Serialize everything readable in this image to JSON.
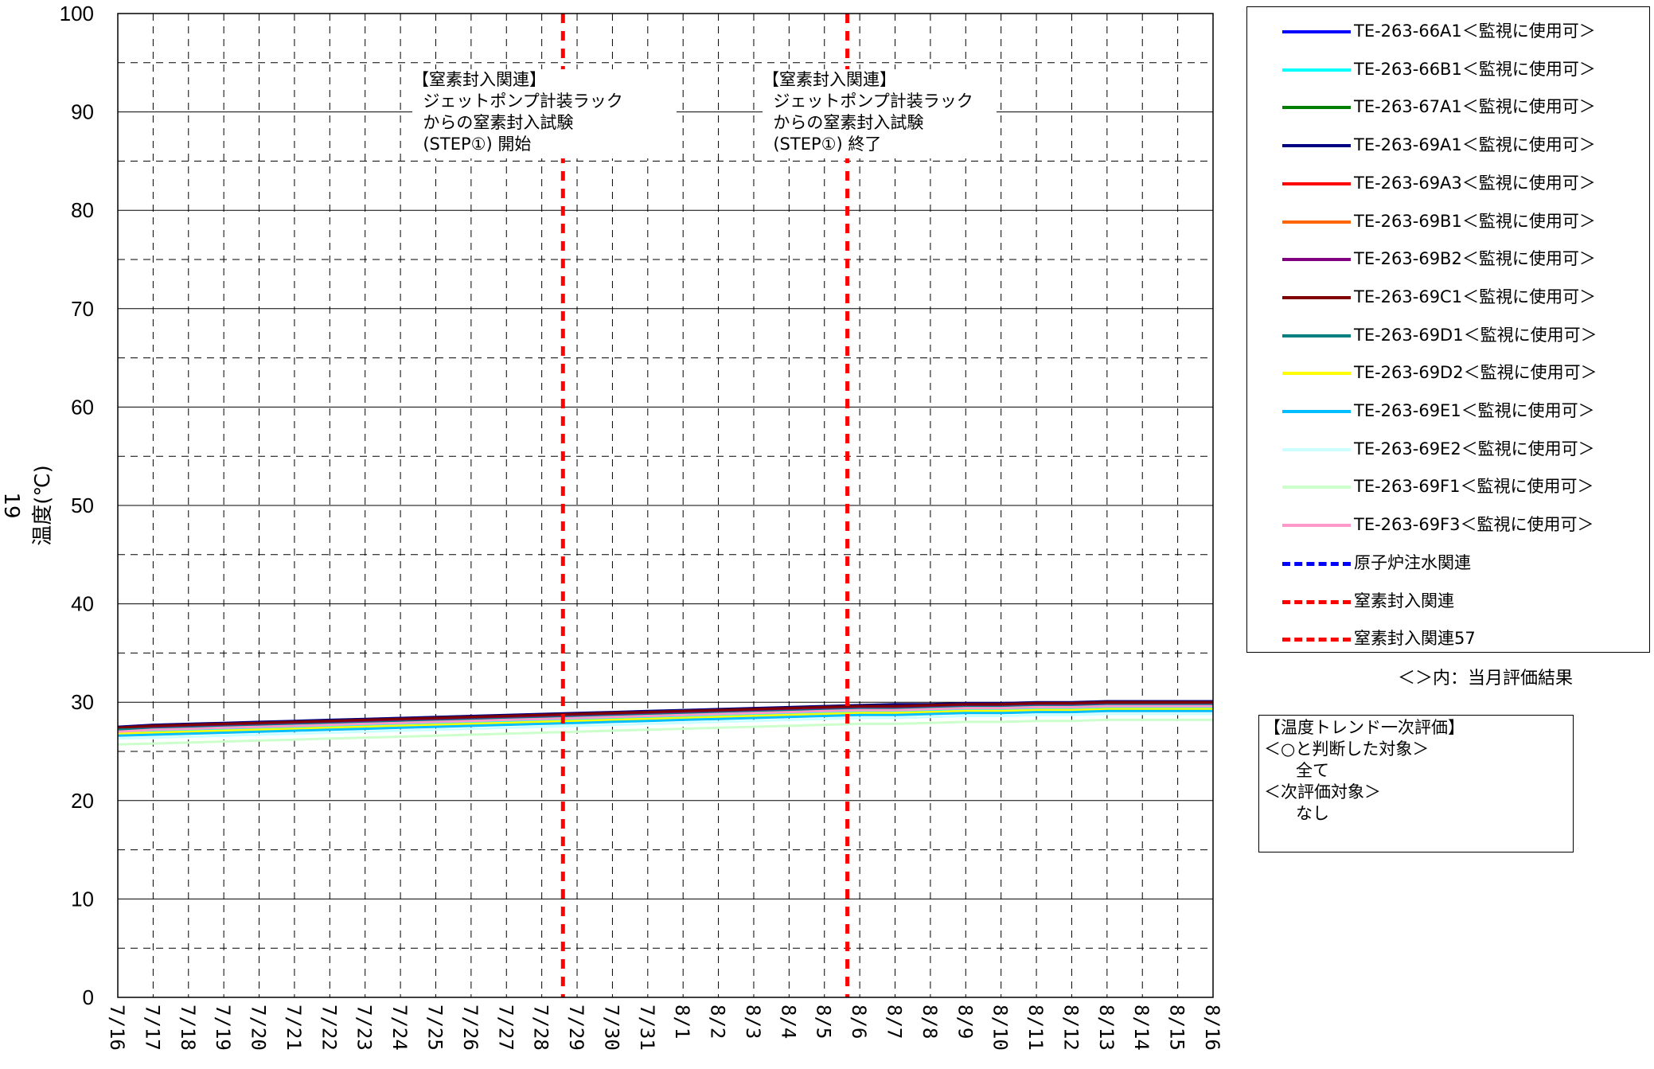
{
  "chart_data": {
    "type": "line",
    "ylabel": "温度(℃)",
    "ylabel_marker": "19",
    "ylim": [
      0,
      100
    ],
    "yticks": [
      0,
      10,
      20,
      30,
      40,
      50,
      60,
      70,
      80,
      90,
      100
    ],
    "grid": "on",
    "x": [
      "7/16",
      "7/17",
      "7/18",
      "7/19",
      "7/20",
      "7/21",
      "7/22",
      "7/23",
      "7/24",
      "7/25",
      "7/26",
      "7/27",
      "7/28",
      "7/29",
      "7/30",
      "7/31",
      "8/1",
      "8/2",
      "8/3",
      "8/4",
      "8/5",
      "8/6",
      "8/7",
      "8/8",
      "8/9",
      "8/10",
      "8/11",
      "8/12",
      "8/13",
      "8/14",
      "8/15",
      "8/16"
    ],
    "series": [
      {
        "name": "TE-263-66A1＜監視に使用可＞",
        "color": "#0000ff",
        "dash": "solid",
        "values": [
          27.4,
          27.6,
          27.7,
          27.8,
          27.9,
          28.0,
          28.1,
          28.2,
          28.3,
          28.4,
          28.5,
          28.6,
          28.7,
          28.8,
          28.9,
          29.0,
          29.1,
          29.2,
          29.3,
          29.4,
          29.5,
          29.6,
          29.7,
          29.7,
          29.8,
          29.8,
          29.9,
          29.9,
          30.0,
          30.0,
          30.0,
          30.0
        ]
      },
      {
        "name": "TE-263-66B1＜監視に使用可＞",
        "color": "#00ffff",
        "dash": "solid",
        "values": [
          27.0,
          27.1,
          27.2,
          27.3,
          27.4,
          27.5,
          27.6,
          27.7,
          27.8,
          27.9,
          28.0,
          28.1,
          28.2,
          28.3,
          28.4,
          28.5,
          28.6,
          28.7,
          28.8,
          28.9,
          29.0,
          29.1,
          29.1,
          29.2,
          29.3,
          29.3,
          29.4,
          29.4,
          29.5,
          29.5,
          29.5,
          29.5
        ]
      },
      {
        "name": "TE-263-67A1＜監視に使用可＞",
        "color": "#008000",
        "dash": "solid",
        "values": [
          27.3,
          27.5,
          27.6,
          27.7,
          27.8,
          27.9,
          28.0,
          28.1,
          28.2,
          28.3,
          28.4,
          28.5,
          28.6,
          28.7,
          28.8,
          28.9,
          29.0,
          29.1,
          29.2,
          29.3,
          29.4,
          29.5,
          29.5,
          29.6,
          29.7,
          29.7,
          29.8,
          29.8,
          29.9,
          29.9,
          29.9,
          29.9
        ]
      },
      {
        "name": "TE-263-69A1＜監視に使用可＞",
        "color": "#000080",
        "dash": "solid",
        "values": [
          27.5,
          27.7,
          27.8,
          27.9,
          28.0,
          28.1,
          28.2,
          28.3,
          28.4,
          28.5,
          28.6,
          28.7,
          28.8,
          28.9,
          29.0,
          29.1,
          29.2,
          29.3,
          29.4,
          29.5,
          29.6,
          29.7,
          29.8,
          29.8,
          29.9,
          29.9,
          30.0,
          30.0,
          30.1,
          30.1,
          30.1,
          30.1
        ]
      },
      {
        "name": "TE-263-69A3＜監視に使用可＞",
        "color": "#ff0000",
        "dash": "solid",
        "values": [
          27.2,
          27.4,
          27.5,
          27.6,
          27.7,
          27.8,
          27.9,
          28.0,
          28.1,
          28.2,
          28.3,
          28.4,
          28.5,
          28.6,
          28.7,
          28.8,
          28.9,
          29.0,
          29.1,
          29.2,
          29.3,
          29.4,
          29.4,
          29.5,
          29.6,
          29.6,
          29.7,
          29.7,
          29.8,
          29.8,
          29.8,
          29.8
        ]
      },
      {
        "name": "TE-263-69B1＜監視に使用可＞",
        "color": "#ff6600",
        "dash": "solid",
        "values": [
          27.3,
          27.4,
          27.5,
          27.6,
          27.7,
          27.8,
          27.9,
          28.0,
          28.1,
          28.2,
          28.3,
          28.4,
          28.5,
          28.6,
          28.7,
          28.8,
          28.9,
          29.0,
          29.1,
          29.2,
          29.3,
          29.4,
          29.4,
          29.5,
          29.6,
          29.6,
          29.7,
          29.7,
          29.8,
          29.8,
          29.8,
          29.8
        ]
      },
      {
        "name": "TE-263-69B2＜監視に使用可＞",
        "color": "#800080",
        "dash": "solid",
        "values": [
          27.4,
          27.5,
          27.6,
          27.7,
          27.8,
          27.9,
          28.0,
          28.1,
          28.2,
          28.3,
          28.4,
          28.5,
          28.6,
          28.7,
          28.8,
          28.9,
          29.0,
          29.1,
          29.2,
          29.3,
          29.4,
          29.5,
          29.5,
          29.6,
          29.7,
          29.7,
          29.8,
          29.8,
          29.9,
          29.9,
          29.9,
          29.9
        ]
      },
      {
        "name": "TE-263-69C1＜監視に使用可＞",
        "color": "#800000",
        "dash": "solid",
        "values": [
          27.4,
          27.6,
          27.7,
          27.8,
          27.9,
          28.0,
          28.1,
          28.2,
          28.3,
          28.4,
          28.5,
          28.6,
          28.7,
          28.8,
          28.9,
          29.0,
          29.1,
          29.2,
          29.3,
          29.4,
          29.5,
          29.6,
          29.6,
          29.7,
          29.8,
          29.8,
          29.9,
          29.9,
          30.0,
          30.0,
          30.0,
          30.0
        ]
      },
      {
        "name": "TE-263-69D1＜監視に使用可＞",
        "color": "#008080",
        "dash": "solid",
        "values": [
          27.2,
          27.3,
          27.4,
          27.5,
          27.6,
          27.7,
          27.8,
          27.9,
          28.0,
          28.1,
          28.2,
          28.3,
          28.4,
          28.5,
          28.6,
          28.7,
          28.8,
          28.9,
          29.0,
          29.1,
          29.2,
          29.3,
          29.3,
          29.4,
          29.5,
          29.5,
          29.6,
          29.6,
          29.7,
          29.7,
          29.7,
          29.7
        ]
      },
      {
        "name": "TE-263-69D2＜監視に使用可＞",
        "color": "#ffff00",
        "dash": "solid",
        "values": [
          26.8,
          26.9,
          27.0,
          27.1,
          27.2,
          27.3,
          27.4,
          27.5,
          27.6,
          27.7,
          27.8,
          27.9,
          28.0,
          28.1,
          28.2,
          28.3,
          28.4,
          28.5,
          28.6,
          28.7,
          28.8,
          28.9,
          28.9,
          29.0,
          29.1,
          29.1,
          29.2,
          29.2,
          29.3,
          29.3,
          29.3,
          29.3
        ]
      },
      {
        "name": "TE-263-69E1＜監視に使用可＞",
        "color": "#00bfff",
        "dash": "solid",
        "values": [
          26.6,
          26.7,
          26.8,
          26.9,
          27.0,
          27.1,
          27.2,
          27.3,
          27.4,
          27.5,
          27.6,
          27.7,
          27.8,
          27.9,
          28.0,
          28.1,
          28.2,
          28.3,
          28.4,
          28.5,
          28.6,
          28.7,
          28.7,
          28.8,
          28.9,
          28.9,
          29.0,
          29.0,
          29.1,
          29.1,
          29.1,
          29.1
        ]
      },
      {
        "name": "TE-263-69E2＜監視に使用可＞",
        "color": "#ccffff",
        "dash": "solid",
        "values": [
          26.3,
          26.4,
          26.5,
          26.6,
          26.7,
          26.8,
          26.9,
          27.0,
          27.1,
          27.2,
          27.3,
          27.4,
          27.5,
          27.6,
          27.7,
          27.8,
          27.9,
          28.0,
          28.1,
          28.2,
          28.3,
          28.4,
          28.4,
          28.5,
          28.6,
          28.6,
          28.7,
          28.7,
          28.8,
          28.8,
          28.8,
          28.8
        ]
      },
      {
        "name": "TE-263-69F1＜監視に使用可＞",
        "color": "#ccffcc",
        "dash": "solid",
        "values": [
          25.7,
          25.8,
          25.9,
          26.0,
          26.1,
          26.2,
          26.3,
          26.4,
          26.5,
          26.6,
          26.7,
          26.8,
          26.9,
          27.0,
          27.1,
          27.2,
          27.3,
          27.4,
          27.5,
          27.6,
          27.7,
          27.8,
          27.8,
          27.9,
          28.0,
          28.0,
          28.1,
          28.1,
          28.2,
          28.2,
          28.2,
          28.2
        ]
      },
      {
        "name": "TE-263-69F3＜監視に使用可＞",
        "color": "#ff99cc",
        "dash": "solid",
        "values": [
          27.0,
          27.2,
          27.3,
          27.4,
          27.5,
          27.6,
          27.7,
          27.8,
          27.9,
          28.0,
          28.1,
          28.2,
          28.3,
          28.4,
          28.5,
          28.6,
          28.7,
          28.8,
          28.9,
          29.0,
          29.1,
          29.2,
          29.2,
          29.3,
          29.4,
          29.4,
          29.5,
          29.5,
          29.6,
          29.6,
          29.6,
          29.6
        ]
      }
    ],
    "event_lines": [
      {
        "legend": "原子炉注水関連",
        "color": "#0000ff",
        "x": null
      },
      {
        "legend": "窒素封入関連",
        "color": "#ff0000",
        "x": "7/28 to 7/29",
        "xpos": 12.6
      },
      {
        "legend": "窒素封入関連57",
        "color": "#ff0000",
        "x": "8/5 to 8/6",
        "xpos": 20.65
      }
    ],
    "annotations": [
      {
        "text": "【窒素封入関連】\n  ジェットポンプ計装ラック\n  からの窒素封入試験\n  (STEP①) 開始"
      },
      {
        "text": "【窒素封入関連】\n  ジェットポンプ計装ラック\n  からの窒素封入試験\n  (STEP①) 終了"
      }
    ],
    "legend_placement": "right",
    "legend_note": "＜＞内：当月評価結果",
    "evaluation_box": "【温度トレンド一次評価】\n＜○と判断した対象＞\n      全て\n＜次評価対象＞\n      なし"
  }
}
